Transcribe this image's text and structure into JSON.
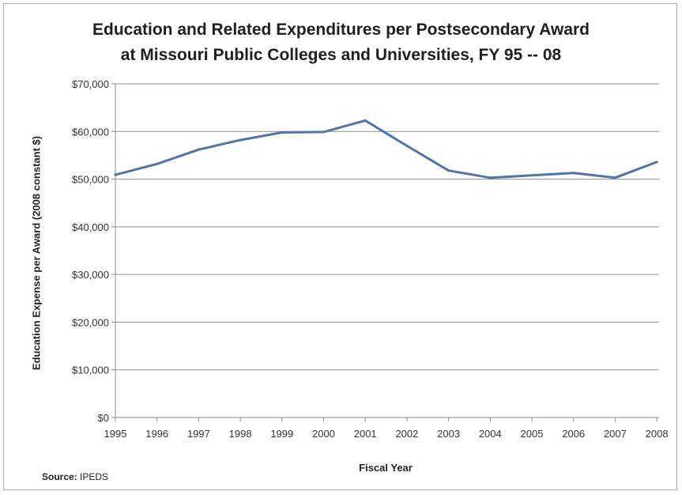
{
  "chart_data": {
    "type": "line",
    "title": [
      "Education and Related Expenditures per Postsecondary Award",
      "at Missouri Public Colleges and Universities, FY 95 -- 08"
    ],
    "xlabel": "Fiscal Year",
    "ylabel": "Education Expense per Award (2008 constant $)",
    "categories": [
      "1995",
      "1996",
      "1997",
      "1998",
      "1999",
      "2000",
      "2001",
      "2002",
      "2003",
      "2004",
      "2005",
      "2006",
      "2007",
      "2008"
    ],
    "series": [
      {
        "values": [
          50900,
          53200,
          56200,
          58200,
          59800,
          59900,
          62300,
          57000,
          51800,
          50300,
          50800,
          51300,
          50300,
          53600
        ],
        "color": "#4f76a8"
      }
    ],
    "ylim": [
      0,
      70000
    ],
    "yticks": [
      0,
      10000,
      20000,
      30000,
      40000,
      50000,
      60000,
      70000
    ],
    "ytick_labels": [
      "$0",
      "$10,000",
      "$20,000",
      "$30,000",
      "$40,000",
      "$50,000",
      "$60,000",
      "$70,000"
    ],
    "grid": "horizontal",
    "legend": "none"
  },
  "source": {
    "label": "Source:",
    "value": " IPEDS"
  }
}
